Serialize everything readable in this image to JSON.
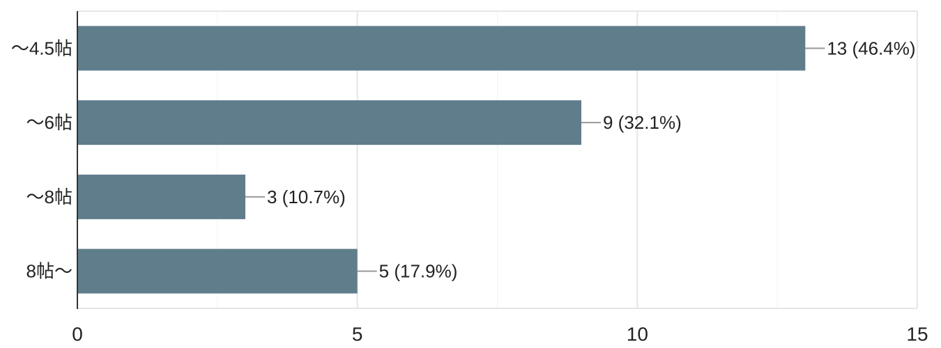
{
  "chart_data": {
    "type": "bar",
    "orientation": "horizontal",
    "categories": [
      "～4.5帖",
      "～6帖",
      "～8帖",
      "8帖～"
    ],
    "values": [
      13,
      9,
      3,
      5
    ],
    "value_labels": [
      "13 (46.4%)",
      "9 (32.1%)",
      "3 (10.7%)",
      "5 (17.9%)"
    ],
    "title": "",
    "xlabel": "",
    "ylabel": "",
    "xlim": [
      0,
      15
    ],
    "x_ticks": [
      0,
      5,
      10,
      15
    ],
    "x_tick_labels": [
      "0",
      "5",
      "10",
      "15"
    ],
    "grid": true,
    "legend": "none",
    "bar_color": "#607d8b"
  }
}
